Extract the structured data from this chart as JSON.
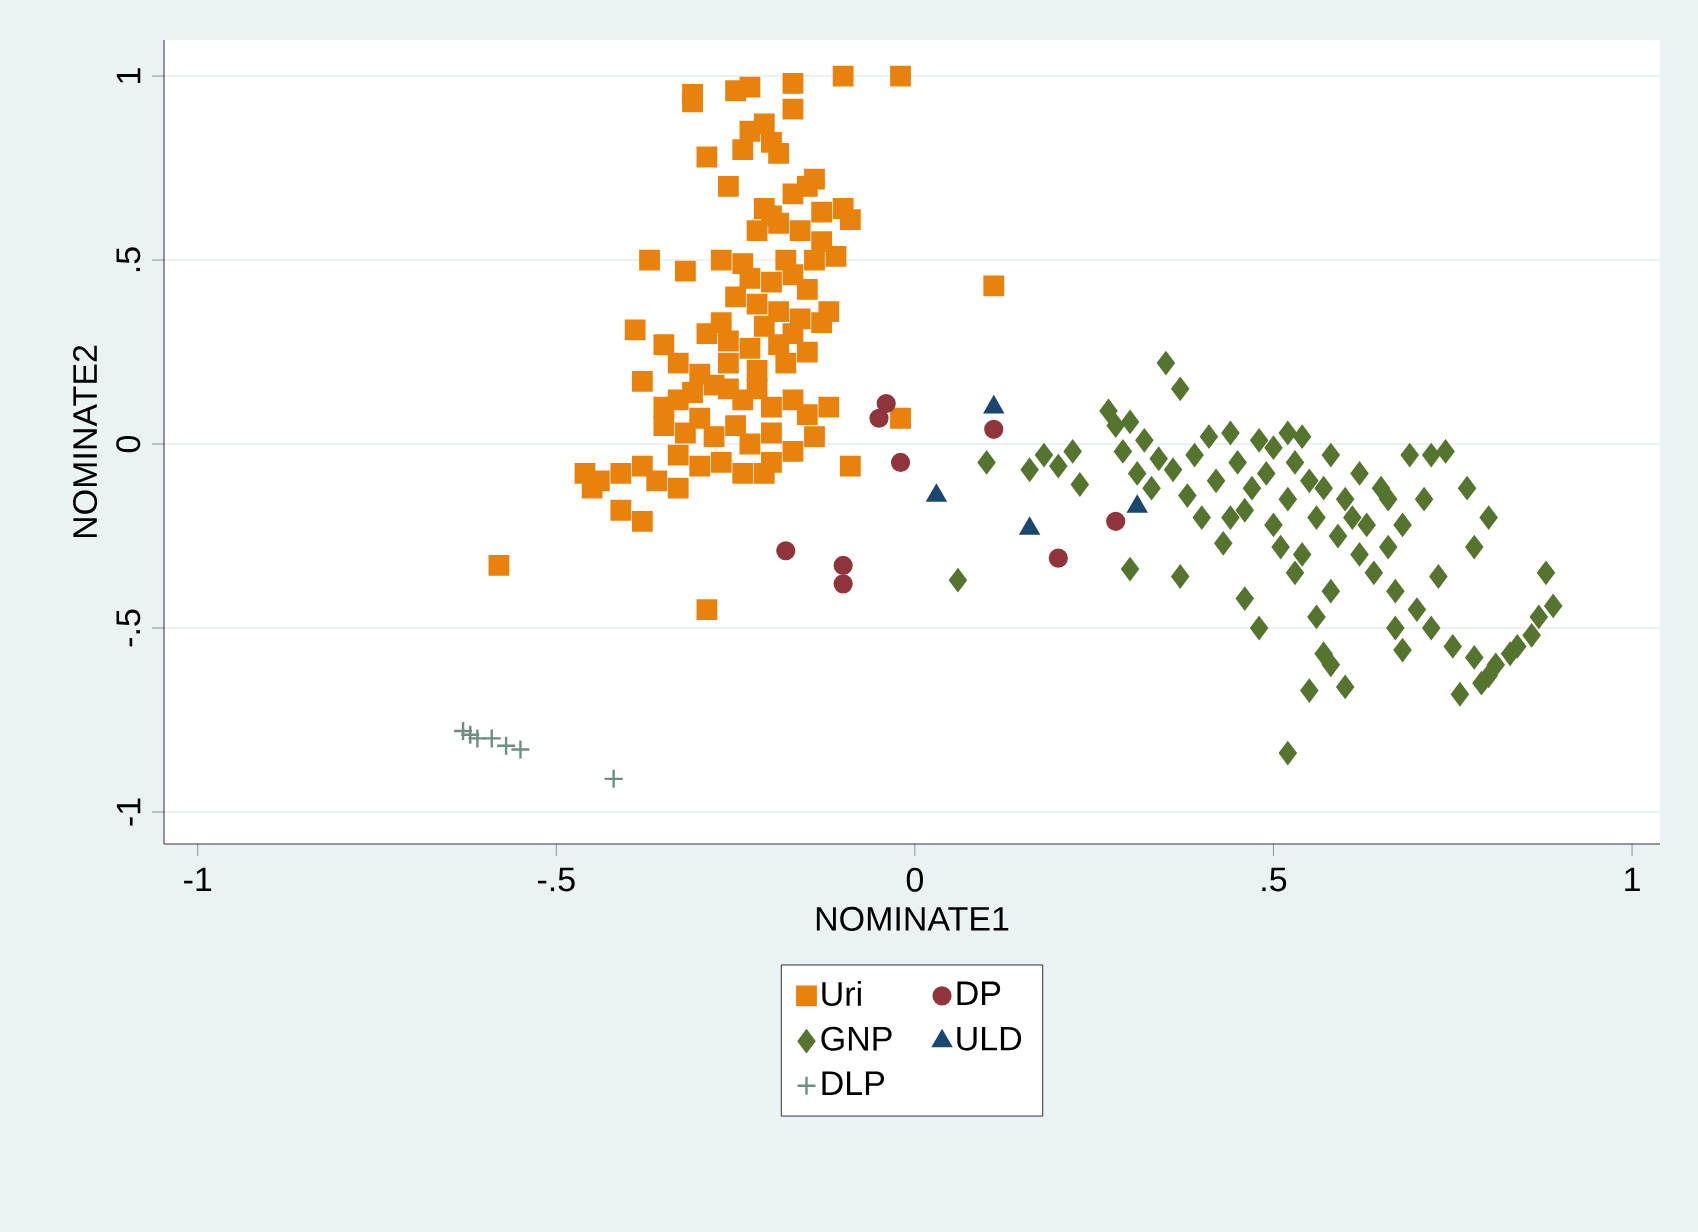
{
  "chart_data": {
    "type": "scatter",
    "xlabel": "NOMINATE1",
    "ylabel": "NOMINATE2",
    "xlim": [
      -1.047,
      1.039
    ],
    "ylim": [
      -1.087,
      1.098
    ],
    "xticks": [
      -1,
      {
        "value": -0.5,
        "label": "-.5"
      },
      0,
      {
        "value": 0.5,
        "label": ".5"
      },
      1
    ],
    "yticks": [
      {
        "value": -1,
        "label": "-1"
      },
      {
        "value": -0.5,
        "label": "-.5"
      },
      0,
      {
        "value": 0.5,
        "label": ".5"
      },
      1
    ],
    "grid": "y",
    "legend": "bottom",
    "series": [
      {
        "name": "Uri",
        "color": "#e8820c",
        "marker": "square",
        "x": [
          -0.31,
          -0.31,
          -0.25,
          -0.23,
          -0.17,
          -0.1,
          -0.02,
          -0.17,
          -0.23,
          -0.21,
          -0.24,
          -0.2,
          -0.29,
          -0.19,
          -0.26,
          -0.15,
          -0.14,
          -0.17,
          -0.1,
          -0.09,
          -0.13,
          -0.21,
          -0.2,
          -0.19,
          -0.16,
          -0.13,
          -0.11,
          -0.14,
          -0.18,
          -0.22,
          -0.24,
          -0.27,
          -0.23,
          -0.2,
          -0.17,
          -0.15,
          -0.25,
          -0.22,
          -0.19,
          -0.16,
          -0.13,
          -0.12,
          -0.17,
          -0.21,
          -0.27,
          -0.26,
          -0.23,
          -0.19,
          -0.15,
          -0.29,
          -0.26,
          -0.22,
          -0.18,
          -0.37,
          -0.32,
          -0.39,
          -0.35,
          -0.33,
          -0.3,
          -0.38,
          -0.35,
          -0.33,
          -0.31,
          -0.28,
          -0.26,
          -0.24,
          -0.22,
          -0.2,
          -0.17,
          -0.15,
          -0.35,
          -0.32,
          -0.3,
          -0.28,
          -0.25,
          -0.23,
          -0.2,
          -0.17,
          -0.14,
          -0.12,
          -0.33,
          -0.3,
          -0.27,
          -0.24,
          -0.21,
          -0.36,
          -0.38,
          -0.41,
          -0.44,
          -0.45,
          -0.46,
          -0.33,
          -0.38,
          -0.41,
          -0.58,
          -0.29,
          -0.02,
          0.11,
          -0.2,
          -0.09
        ],
        "values": [
          0.95,
          0.93,
          0.96,
          0.97,
          0.98,
          1.0,
          1.0,
          0.91,
          0.85,
          0.87,
          0.8,
          0.82,
          0.78,
          0.79,
          0.7,
          0.7,
          0.72,
          0.68,
          0.64,
          0.61,
          0.63,
          0.64,
          0.62,
          0.6,
          0.58,
          0.55,
          0.51,
          0.5,
          0.5,
          0.58,
          0.49,
          0.5,
          0.45,
          0.44,
          0.46,
          0.42,
          0.4,
          0.38,
          0.36,
          0.34,
          0.33,
          0.36,
          0.3,
          0.32,
          0.33,
          0.28,
          0.26,
          0.27,
          0.25,
          0.3,
          0.22,
          0.2,
          0.22,
          0.5,
          0.47,
          0.31,
          0.27,
          0.22,
          0.19,
          0.17,
          0.1,
          0.12,
          0.14,
          0.16,
          0.15,
          0.12,
          0.15,
          0.1,
          0.12,
          0.08,
          0.05,
          0.03,
          0.07,
          0.02,
          0.05,
          0.0,
          0.03,
          -0.02,
          0.02,
          0.1,
          -0.03,
          -0.06,
          -0.05,
          -0.08,
          -0.08,
          -0.1,
          -0.06,
          -0.08,
          -0.1,
          -0.12,
          -0.08,
          -0.12,
          -0.21,
          -0.18,
          -0.33,
          -0.45,
          0.07,
          0.43,
          -0.05,
          -0.06
        ]
      },
      {
        "name": "DP",
        "color": "#90353b",
        "marker": "circle",
        "x": [
          -0.04,
          -0.05,
          0.11,
          -0.02,
          -0.18,
          -0.1,
          -0.1,
          0.2,
          0.28
        ],
        "values": [
          0.11,
          0.07,
          0.04,
          -0.05,
          -0.29,
          -0.33,
          -0.38,
          -0.31,
          -0.21
        ]
      },
      {
        "name": "GNP",
        "color": "#55752f",
        "marker": "diamond",
        "x": [
          0.06,
          0.1,
          0.16,
          0.18,
          0.2,
          0.22,
          0.23,
          0.27,
          0.28,
          0.29,
          0.3,
          0.31,
          0.3,
          0.32,
          0.33,
          0.35,
          0.37,
          0.34,
          0.36,
          0.38,
          0.37,
          0.4,
          0.41,
          0.42,
          0.43,
          0.44,
          0.45,
          0.46,
          0.46,
          0.47,
          0.48,
          0.49,
          0.5,
          0.51,
          0.52,
          0.52,
          0.52,
          0.53,
          0.54,
          0.54,
          0.55,
          0.55,
          0.56,
          0.56,
          0.57,
          0.57,
          0.58,
          0.58,
          0.59,
          0.6,
          0.6,
          0.61,
          0.62,
          0.62,
          0.63,
          0.64,
          0.65,
          0.66,
          0.67,
          0.67,
          0.68,
          0.69,
          0.7,
          0.71,
          0.72,
          0.73,
          0.74,
          0.75,
          0.76,
          0.77,
          0.78,
          0.78,
          0.79,
          0.8,
          0.8,
          0.81,
          0.83,
          0.84,
          0.86,
          0.87,
          0.88,
          0.89,
          0.5,
          0.44,
          0.39,
          0.58,
          0.53,
          0.48,
          0.68,
          0.72,
          0.66
        ],
        "values": [
          -0.37,
          -0.05,
          -0.07,
          -0.03,
          -0.06,
          -0.02,
          -0.11,
          0.09,
          0.05,
          -0.02,
          0.06,
          -0.08,
          -0.34,
          0.01,
          -0.12,
          0.22,
          0.15,
          -0.04,
          -0.07,
          -0.14,
          -0.36,
          -0.2,
          0.02,
          -0.1,
          -0.27,
          0.03,
          -0.05,
          -0.18,
          -0.42,
          -0.12,
          0.01,
          -0.08,
          -0.22,
          -0.28,
          0.03,
          -0.15,
          -0.84,
          -0.05,
          0.02,
          -0.3,
          -0.67,
          -0.1,
          -0.2,
          -0.47,
          -0.12,
          -0.57,
          -0.03,
          -0.6,
          -0.25,
          -0.15,
          -0.66,
          -0.2,
          -0.3,
          -0.08,
          -0.22,
          -0.35,
          -0.12,
          -0.28,
          -0.4,
          -0.5,
          -0.22,
          -0.03,
          -0.45,
          -0.15,
          -0.5,
          -0.36,
          -0.02,
          -0.55,
          -0.68,
          -0.12,
          -0.58,
          -0.28,
          -0.65,
          -0.63,
          -0.2,
          -0.6,
          -0.57,
          -0.55,
          -0.52,
          -0.47,
          -0.35,
          -0.44,
          -0.01,
          -0.2,
          -0.03,
          -0.4,
          -0.35,
          -0.5,
          -0.56,
          -0.03,
          -0.15
        ]
      },
      {
        "name": "ULD",
        "color": "#1a476f",
        "marker": "triangle",
        "x": [
          0.11,
          0.03,
          0.16,
          0.31
        ],
        "values": [
          0.1,
          -0.14,
          -0.23,
          -0.17
        ]
      },
      {
        "name": "DLP",
        "color": "#6e8e84",
        "marker": "cross",
        "x": [
          -0.63,
          -0.62,
          -0.61,
          -0.59,
          -0.57,
          -0.55,
          -0.42
        ],
        "values": [
          -0.78,
          -0.79,
          -0.8,
          -0.8,
          -0.82,
          -0.83,
          -0.91
        ]
      }
    ]
  }
}
